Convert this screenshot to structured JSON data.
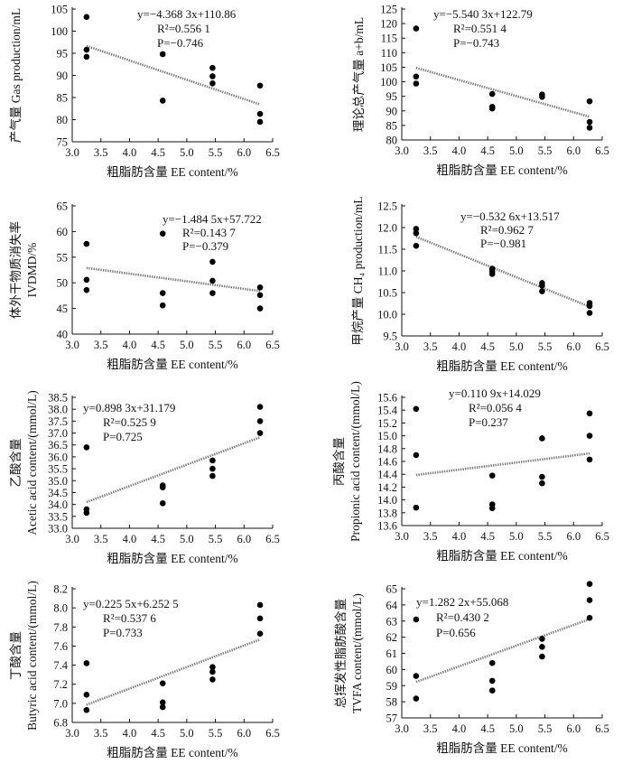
{
  "chart_data": [
    {
      "type": "scatter",
      "xlabel": "粗脂肪含量  EE content/%",
      "ylabel": [
        "产气量  Gas production/mL"
      ],
      "xlim": [
        3.0,
        6.5
      ],
      "xticks": [
        3.0,
        3.5,
        4.0,
        4.5,
        5.0,
        5.5,
        6.0,
        6.5
      ],
      "ylim": [
        75,
        105
      ],
      "yticks": [
        75,
        80,
        85,
        90,
        95,
        100,
        105
      ],
      "x": [
        3.25,
        3.25,
        3.25,
        4.58,
        4.58,
        5.45,
        5.45,
        5.45,
        6.28,
        6.28,
        6.28
      ],
      "y": [
        103.2,
        95.8,
        94.2,
        94.8,
        84.3,
        91.7,
        89.8,
        88.2,
        87.7,
        81.3,
        79.5
      ],
      "trendline": {
        "x": [
          3.25,
          6.28
        ],
        "y": [
          96.66,
          83.43
        ]
      },
      "annotation": [
        "y=−4.368 3x+110.86",
        "R²=0.556 1",
        "P=−0.746"
      ]
    },
    {
      "type": "scatter",
      "xlabel": "粗脂肪含量  EE content/%",
      "ylabel": [
        "理论总产气量  a+b/mL"
      ],
      "xlim": [
        3.0,
        6.5
      ],
      "xticks": [
        3.0,
        3.5,
        4.0,
        4.5,
        5.0,
        5.5,
        6.0,
        6.5
      ],
      "ylim": [
        80,
        125
      ],
      "yticks": [
        80,
        85,
        90,
        95,
        100,
        105,
        110,
        115,
        120,
        125
      ],
      "x": [
        3.25,
        3.25,
        3.25,
        4.58,
        4.58,
        4.58,
        5.45,
        5.45,
        6.28,
        6.28,
        6.28
      ],
      "y": [
        118.3,
        101.8,
        99.4,
        95.8,
        91.4,
        90.8,
        95.6,
        94.8,
        93.3,
        86.2,
        84.2
      ],
      "trendline": {
        "x": [
          3.25,
          6.28
        ],
        "y": [
          104.78,
          87.99
        ]
      },
      "annotation": [
        "y=−5.540 3x+122.79",
        "R²=0.551 4",
        "P=−0.743"
      ]
    },
    {
      "type": "scatter",
      "xlabel": "粗脂肪含量  EE content/%",
      "ylabel": [
        "体外干物质消失率",
        "IVDMD/%"
      ],
      "xlim": [
        3.0,
        6.5
      ],
      "xticks": [
        3.0,
        3.5,
        4.0,
        4.5,
        5.0,
        5.5,
        6.0,
        6.5
      ],
      "ylim": [
        40,
        65
      ],
      "yticks": [
        40,
        45,
        50,
        55,
        60,
        65
      ],
      "x": [
        3.25,
        3.25,
        3.25,
        4.58,
        4.58,
        4.58,
        5.45,
        5.45,
        5.45,
        6.28,
        6.28,
        6.28
      ],
      "y": [
        57.6,
        50.6,
        48.6,
        59.6,
        48.0,
        45.6,
        54.1,
        50.4,
        48.0,
        49.1,
        47.6,
        45.0
      ],
      "trendline": {
        "x": [
          3.25,
          6.28
        ],
        "y": [
          52.9,
          48.4
        ]
      },
      "annotation": [
        "y=−1.484 5x+57.722",
        "R²=0.143 7",
        "P=−0.379"
      ]
    },
    {
      "type": "scatter",
      "xlabel": "粗脂肪含量  EE content/%",
      "ylabel": [
        "甲烷产量  CH₄ production/mL"
      ],
      "xlim": [
        3.0,
        6.5
      ],
      "xticks": [
        3.0,
        3.5,
        4.0,
        4.5,
        5.0,
        5.5,
        6.0,
        6.5
      ],
      "ylim": [
        9.5,
        12.5
      ],
      "yticks": [
        9.5,
        10.0,
        10.5,
        11.0,
        11.5,
        12.0,
        12.5
      ],
      "x": [
        3.25,
        3.25,
        3.25,
        4.58,
        4.58,
        4.58,
        5.45,
        5.45,
        5.45,
        6.28,
        6.28,
        6.28
      ],
      "y": [
        11.97,
        11.87,
        11.58,
        11.05,
        10.99,
        10.93,
        10.72,
        10.66,
        10.53,
        10.26,
        10.19,
        10.03
      ],
      "trendline": {
        "x": [
          3.25,
          6.28
        ],
        "y": [
          11.786,
          10.174
        ]
      },
      "annotation": [
        "y=−0.532 6x+13.517",
        "R²=0.962 7",
        "P=−0.981"
      ]
    },
    {
      "type": "scatter",
      "xlabel": "粗脂肪含量  EE content/%",
      "ylabel": [
        "乙酸含量",
        "Acetic acid content/(mmol/L)"
      ],
      "xlim": [
        3.0,
        6.5
      ],
      "xticks": [
        3.0,
        3.5,
        4.0,
        4.5,
        5.0,
        5.5,
        6.0,
        6.5
      ],
      "ylim": [
        33.0,
        38.5
      ],
      "yticks": [
        33.0,
        33.5,
        34.0,
        34.5,
        35.0,
        35.5,
        36.0,
        36.5,
        37.0,
        37.5,
        38.0,
        38.5
      ],
      "x": [
        3.25,
        3.25,
        3.25,
        4.58,
        4.58,
        4.58,
        5.45,
        5.45,
        5.45,
        6.28,
        6.28,
        6.28
      ],
      "y": [
        36.4,
        33.8,
        33.65,
        34.8,
        34.72,
        34.05,
        35.85,
        35.5,
        35.2,
        38.1,
        37.5,
        37.0
      ],
      "trendline": {
        "x": [
          3.25,
          6.28
        ],
        "y": [
          34.1,
          36.82
        ]
      },
      "annotation": [
        "y=0.898 3x+31.179",
        "R²=0.525 9",
        "P=0.725"
      ]
    },
    {
      "type": "scatter",
      "xlabel": "粗脂肪含量  EE content/%",
      "ylabel": [
        "丙酸含量",
        "Propionic acid content/(mmol/L)"
      ],
      "xlim": [
        3.0,
        6.5
      ],
      "xticks": [
        3.0,
        3.5,
        4.0,
        4.5,
        5.0,
        5.5,
        6.0,
        6.5
      ],
      "ylim": [
        13.6,
        15.6
      ],
      "yticks": [
        13.6,
        13.8,
        14.0,
        14.2,
        14.4,
        14.6,
        14.8,
        15.0,
        15.2,
        15.4,
        15.6
      ],
      "x": [
        3.25,
        3.25,
        3.25,
        4.58,
        4.58,
        4.58,
        5.45,
        5.45,
        5.45,
        6.28,
        6.28,
        6.28
      ],
      "y": [
        15.42,
        14.7,
        13.88,
        14.38,
        13.93,
        13.87,
        14.96,
        14.36,
        14.26,
        15.35,
        15.0,
        14.63
      ],
      "trendline": {
        "x": [
          3.25,
          6.28
        ],
        "y": [
          14.389,
          14.725
        ]
      },
      "annotation": [
        "y=0.110 9x+14.029",
        "R²=0.056 4",
        "P=0.237"
      ]
    },
    {
      "type": "scatter",
      "xlabel": "粗脂肪含量  EE content/%",
      "ylabel": [
        "丁酸含量",
        "Butyric acid content/(mmol/L)"
      ],
      "xlim": [
        3.0,
        6.5
      ],
      "xticks": [
        3.0,
        3.5,
        4.0,
        4.5,
        5.0,
        5.5,
        6.0,
        6.5
      ],
      "ylim": [
        6.8,
        8.2
      ],
      "yticks": [
        6.8,
        7.0,
        7.2,
        7.4,
        7.6,
        7.8,
        8.0,
        8.2
      ],
      "x": [
        3.25,
        3.25,
        3.25,
        4.58,
        4.58,
        4.58,
        5.45,
        5.45,
        5.45,
        6.28,
        6.28,
        6.28
      ],
      "y": [
        7.42,
        7.09,
        6.93,
        7.21,
        7.01,
        6.96,
        7.38,
        7.33,
        7.25,
        8.03,
        7.89,
        7.73
      ],
      "trendline": {
        "x": [
          3.25,
          6.28
        ],
        "y": [
          6.985,
          7.669
        ]
      },
      "annotation": [
        "y=0.225 5x+6.252 5",
        "R²=0.537 6",
        "P=0.733"
      ]
    },
    {
      "type": "scatter",
      "xlabel": "粗脂肪含量  EE content/%",
      "ylabel": [
        "总挥发性脂肪酸含量",
        "TVFA content/(mmol/L)"
      ],
      "xlim": [
        3.0,
        6.5
      ],
      "xticks": [
        3.0,
        3.5,
        4.0,
        4.5,
        5.0,
        5.5,
        6.0,
        6.5
      ],
      "ylim": [
        57,
        65
      ],
      "yticks": [
        57,
        58,
        59,
        60,
        61,
        62,
        63,
        64,
        65
      ],
      "x": [
        3.25,
        3.25,
        3.25,
        4.58,
        4.58,
        4.58,
        5.45,
        5.45,
        5.45,
        6.28,
        6.28,
        6.28
      ],
      "y": [
        63.1,
        59.6,
        58.2,
        60.4,
        59.3,
        58.7,
        61.9,
        61.4,
        60.8,
        65.3,
        64.3,
        63.2
      ],
      "trendline": {
        "x": [
          3.25,
          6.28
        ],
        "y": [
          59.23,
          63.12
        ]
      },
      "annotation": [
        "y=1.282 2x+55.068",
        "R²=0.430 2",
        "P=0.656"
      ]
    }
  ]
}
